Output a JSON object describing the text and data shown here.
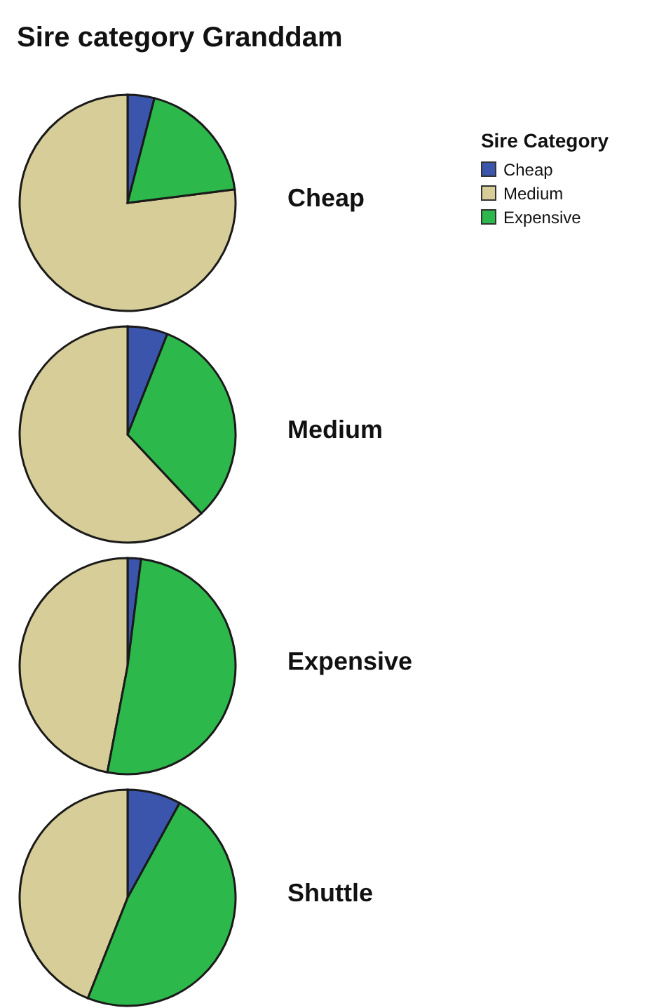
{
  "chart_data": [
    {
      "type": "pie",
      "title": "Sire category Granddam",
      "subtitle": "Cheap",
      "legend_title": "Sire Category",
      "legend": "right",
      "categories": [
        "Cheap",
        "Medium",
        "Expensive"
      ],
      "values": [
        4,
        77,
        19
      ],
      "colors": [
        "#3b55ad",
        "#d6cd98",
        "#2db84b"
      ]
    },
    {
      "type": "pie",
      "subtitle": "Medium",
      "categories": [
        null,
        null,
        null
      ],
      "values": [
        6,
        62,
        32
      ],
      "colors": [
        "#3b55ad",
        "#d6cd98",
        "#2db84b"
      ]
    },
    {
      "type": "pie",
      "subtitle": "Expensive",
      "categories": [
        null,
        null,
        null
      ],
      "values": [
        2,
        47,
        51
      ],
      "colors": [
        "#3b55ad",
        "#d6cd98",
        "#2db84b"
      ]
    },
    {
      "type": "pie",
      "subtitle": "Shuttle",
      "categories": [
        null,
        null,
        null
      ],
      "values": [
        8,
        44,
        48
      ],
      "colors": [
        "#3b55ad",
        "#d6cd98",
        "#2db84b"
      ]
    }
  ]
}
